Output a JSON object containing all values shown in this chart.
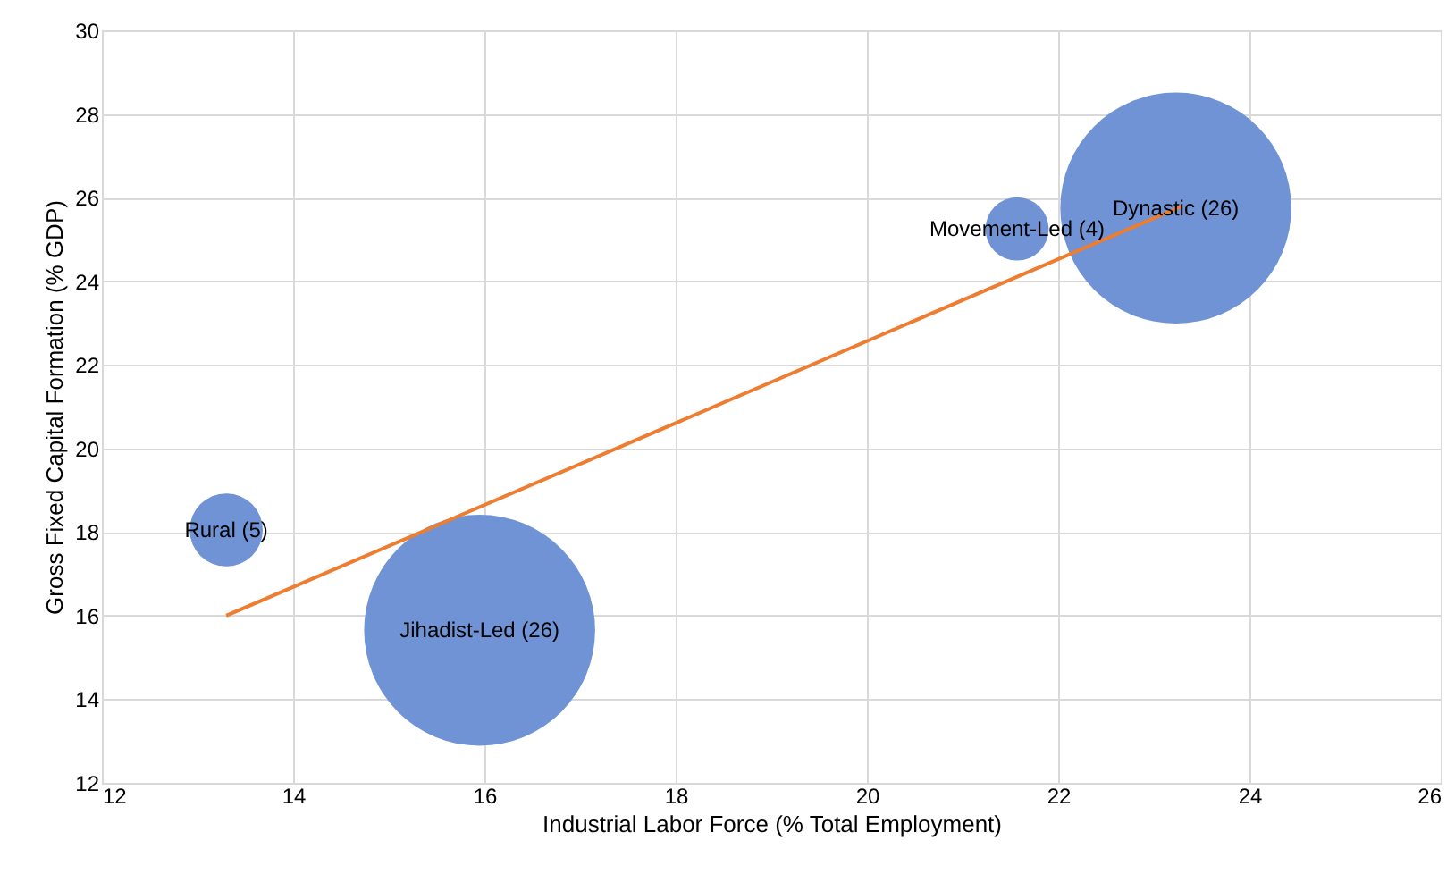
{
  "chart_data": {
    "type": "bubble",
    "xlabel": "Industrial Labor Force (% Total Employment)",
    "ylabel": "Gross Fixed  Capital Formation (% GDP)",
    "xlim": [
      12,
      26
    ],
    "xticks": [
      12,
      14,
      16,
      18,
      20,
      22,
      24,
      26
    ],
    "ylim": [
      12,
      30
    ],
    "yticks": [
      12,
      14,
      16,
      18,
      20,
      22,
      24,
      26,
      28,
      30
    ],
    "grid": true,
    "series": [
      {
        "color": "#6f93d4",
        "x": [
          13.3,
          15.95,
          21.57,
          23.23
        ],
        "values": [
          18.05,
          15.65,
          25.25,
          25.75
        ],
        "sizes": [
          0.1,
          1,
          0.075,
          1
        ]
      },
      {
        "type": "line",
        "color": "#ed7d31",
        "x": [
          13.3,
          23.3
        ],
        "values": [
          16.0,
          25.8
        ],
        "marker": "none",
        "line_style": "solid"
      }
    ],
    "annotations": [
      {
        "text": "Rural (5)",
        "x": 13.3,
        "y": 18.05
      },
      {
        "text": "Jihadist-Led (26)",
        "x": 15.95,
        "y": 15.65
      },
      {
        "text": "Movement-Led (4)",
        "x": 21.57,
        "y": 25.25
      },
      {
        "text": "Dynastic (26)",
        "x": 23.23,
        "y": 25.75
      }
    ]
  }
}
